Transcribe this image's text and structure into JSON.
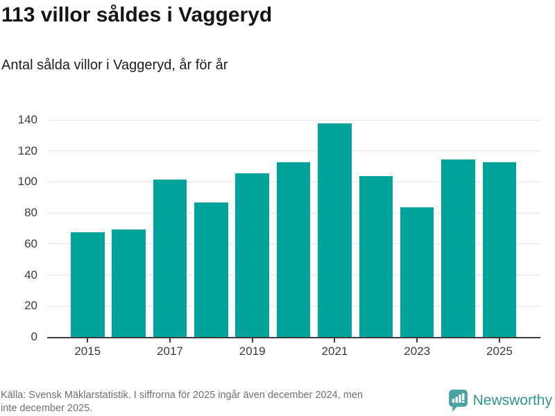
{
  "header": {
    "title": "113 villor såldes i Vaggeryd",
    "subtitle": "Antal sålda villor i Vaggeryd, år för år"
  },
  "chart_data": {
    "type": "bar",
    "title": "113 villor såldes i Vaggeryd",
    "subtitle": "Antal sålda villor i Vaggeryd, år för år",
    "categories": [
      "2015",
      "2016",
      "2017",
      "2018",
      "2019",
      "2020",
      "2021",
      "2022",
      "2023",
      "2024",
      "2025"
    ],
    "values": [
      68,
      70,
      102,
      87,
      106,
      113,
      138,
      104,
      84,
      115,
      113
    ],
    "xlabel": "",
    "ylabel": "",
    "ylim": [
      0,
      140
    ],
    "yticks": [
      0,
      20,
      40,
      60,
      80,
      100,
      120,
      140
    ],
    "xtick_labels": [
      "2015",
      "2017",
      "2019",
      "2021",
      "2023",
      "2025"
    ],
    "grid": true,
    "legend": false,
    "bar_color": "#00a39c",
    "gridline_color": "#e2e2e2",
    "axis_color": "#3d3d3d",
    "tick_label_color": "#3a3a3a"
  },
  "footer": {
    "source_line1": "Källa: Svensk Mäklarstatistik. I siffrorna för 2025 ingår även december 2024, men",
    "source_line2": "inte december 2025.",
    "logo_text": "Newsworthy",
    "logo_text_color": "#35948f",
    "logo_icon_color": "#4aa39e",
    "logo_icon": "bar-chart-speech-bubble-icon"
  }
}
